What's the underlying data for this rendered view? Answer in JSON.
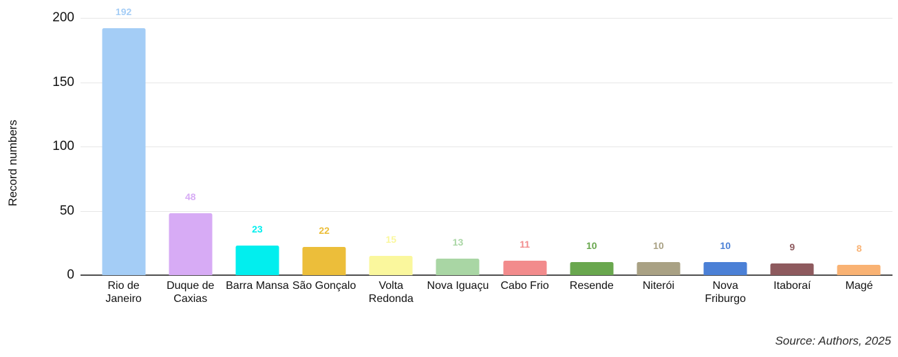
{
  "chart_data": {
    "type": "bar",
    "title": "",
    "xlabel": "",
    "ylabel": "Record numbers",
    "ylim": [
      0,
      200
    ],
    "yticks": [
      0,
      50,
      100,
      150,
      200
    ],
    "grid": "horizontal",
    "legend": "none",
    "value_labels": "above bars, colored same as bar",
    "categories": [
      "Rio de Janeiro",
      "Duque de Caxias",
      "Barra Mansa",
      "São Gonçalo",
      "Volta Redonda",
      "Nova Iguaçu",
      "Cabo Frio",
      "Resende",
      "Niterói",
      "Nova Friburgo",
      "Itaboraí",
      "Magé"
    ],
    "values": [
      192,
      48,
      23,
      22,
      15,
      13,
      11,
      10,
      10,
      10,
      9,
      8
    ],
    "bar_colors": [
      "#a4cdf6",
      "#d7abf5",
      "#02eeee",
      "#ecbe3a",
      "#faf79d",
      "#a9d6a4",
      "#f28b8c",
      "#69a74e",
      "#a9a184",
      "#4b80d6",
      "#8e5a5e",
      "#f9b273"
    ]
  },
  "source_note": "Source: Authors, 2025",
  "colors": {
    "background": "#ffffff",
    "axis_line": "#4d4d4d",
    "gridline": "#e6e6e6",
    "tick_text": "#111111"
  }
}
